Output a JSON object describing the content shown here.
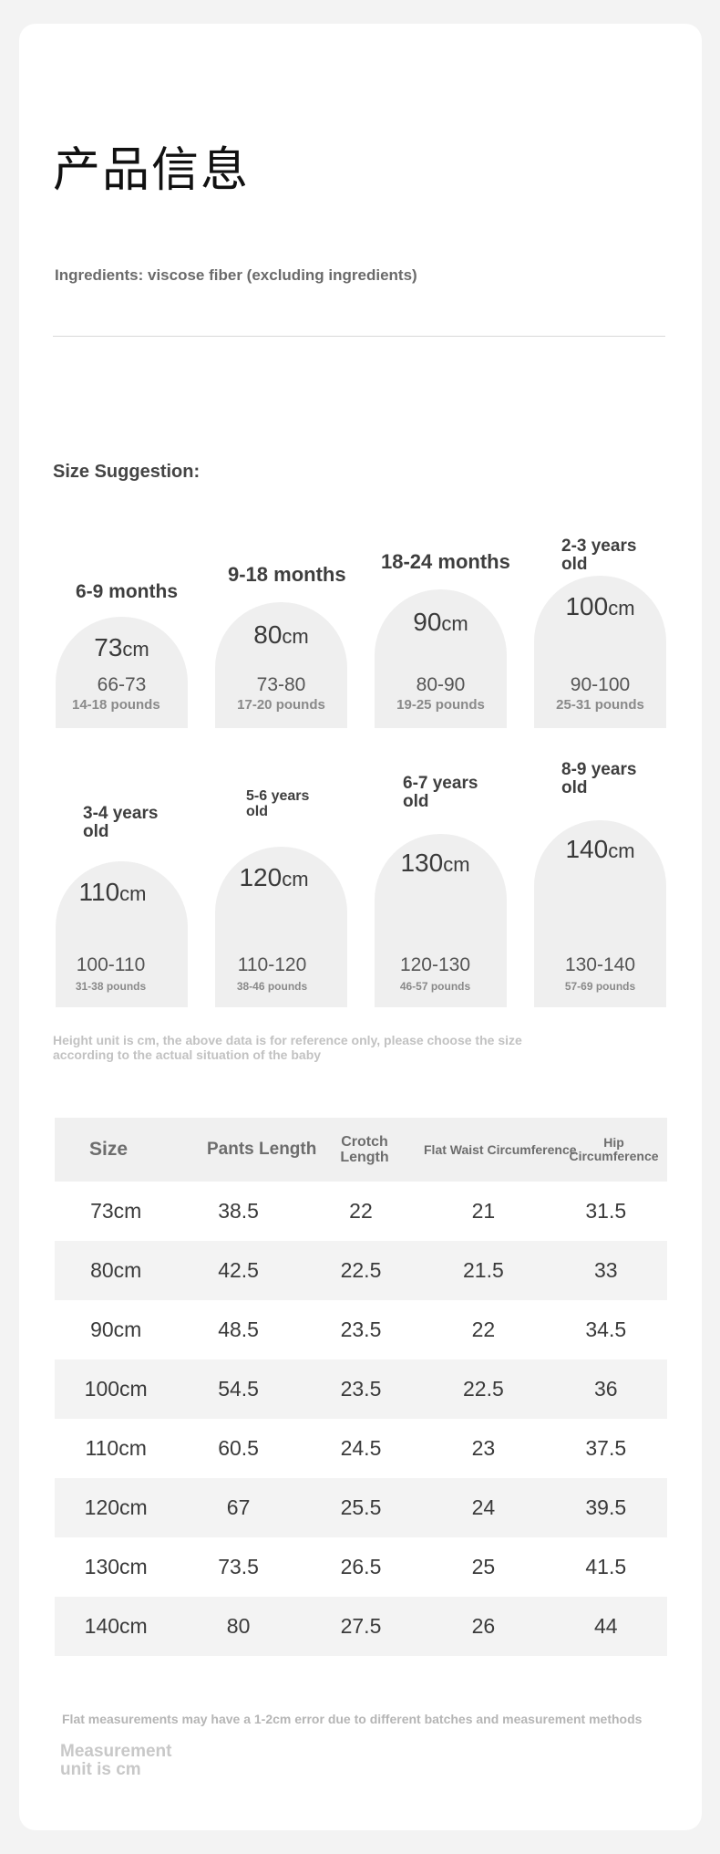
{
  "header": {
    "title": "产品信息",
    "ingredients": "Ingredients: viscose fiber (excluding ingredients)"
  },
  "size_suggestion": {
    "heading": "Size Suggestion:",
    "items": [
      {
        "age": "6-9 months",
        "cm": "73",
        "unit": "cm",
        "range": "66-73",
        "weight": "14-18 pounds"
      },
      {
        "age": "9-18 months",
        "cm": "80",
        "unit": "cm",
        "range": "73-80",
        "weight": "17-20 pounds"
      },
      {
        "age": "18-24 months",
        "cm": "90",
        "unit": "cm",
        "range": "80-90",
        "weight": "19-25 pounds"
      },
      {
        "age": "2-3 years old",
        "cm": "100",
        "unit": "cm",
        "range": "90-100",
        "weight": "25-31 pounds"
      },
      {
        "age": "3-4 years old",
        "cm": "110",
        "unit": "cm",
        "range": "100-110",
        "weight": "31-38 pounds"
      },
      {
        "age": "5-6 years old",
        "cm": "120",
        "unit": "cm",
        "range": "110-120",
        "weight": "38-46 pounds"
      },
      {
        "age": "6-7 years old",
        "cm": "130",
        "unit": "cm",
        "range": "120-130",
        "weight": "46-57 pounds"
      },
      {
        "age": "8-9 years old",
        "cm": "140",
        "unit": "cm",
        "range": "130-140",
        "weight": "57-69 pounds"
      }
    ],
    "note": "Height unit is cm, the above data is for reference only, please choose the size according to the actual situation of the baby"
  },
  "size_table": {
    "headers": [
      "Size",
      "Pants Length",
      "Crotch Length",
      "Flat Waist Circumference",
      "Hip Circumference"
    ],
    "rows": [
      [
        "73cm",
        "38.5",
        "22",
        "21",
        "31.5"
      ],
      [
        "80cm",
        "42.5",
        "22.5",
        "21.5",
        "33"
      ],
      [
        "90cm",
        "48.5",
        "23.5",
        "22",
        "34.5"
      ],
      [
        "100cm",
        "54.5",
        "23.5",
        "22.5",
        "36"
      ],
      [
        "110cm",
        "60.5",
        "24.5",
        "23",
        "37.5"
      ],
      [
        "120cm",
        "67",
        "25.5",
        "24",
        "39.5"
      ],
      [
        "130cm",
        "73.5",
        "26.5",
        "25",
        "41.5"
      ],
      [
        "140cm",
        "80",
        "27.5",
        "26",
        "44"
      ]
    ]
  },
  "footer": {
    "error_note": "Flat measurements may have a 1-2cm error due to different batches and measurement methods",
    "unit_note": "Measurement unit is cm"
  },
  "colors": {
    "page_background": "#f3f3f3",
    "card_background": "#ffffff",
    "arch_fill": "#efefef",
    "table_stripe": "#f3f3f3"
  }
}
